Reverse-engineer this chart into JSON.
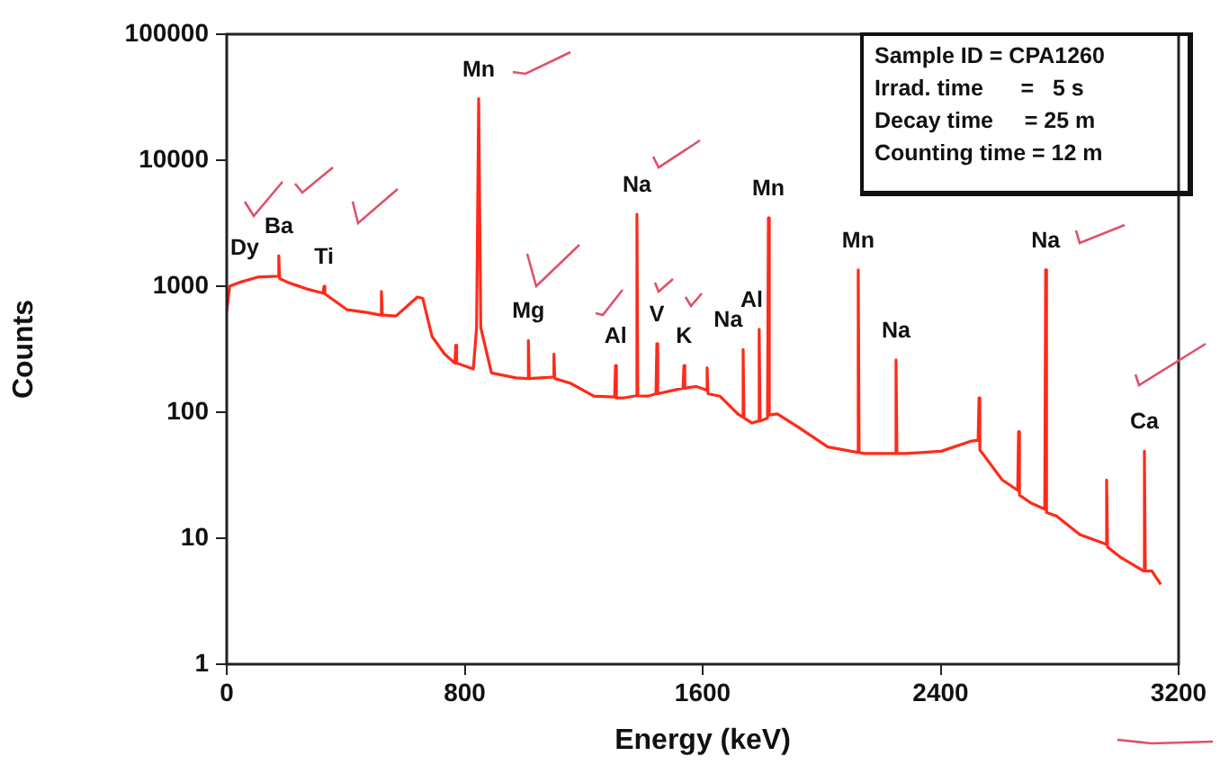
{
  "chart_data": {
    "type": "line",
    "xlabel": "Energy (keV)",
    "ylabel": "Counts",
    "log": "y",
    "marker": "none",
    "xlim": [
      0,
      3200
    ],
    "xticks": [
      0,
      800,
      1600,
      2400,
      3200
    ],
    "ylim": [
      1,
      100000
    ],
    "yticks": [
      1,
      10,
      100,
      1000,
      10000,
      100000
    ],
    "series": [
      {
        "color": "#ff2a1a",
        "x": [
          0,
          10,
          42,
          103,
          172,
          175,
          178,
          206,
          270,
          324,
          327,
          330,
          405,
          470,
          517,
          520,
          523,
          569,
          641,
          659,
          690,
          732,
          767,
          770,
          773,
          829,
          840,
          847,
          854,
          890,
          973,
          1011,
          1014,
          1017,
          1053,
          1097,
          1100,
          1103,
          1155,
          1234,
          1304,
          1307,
          1310,
          1337,
          1376,
          1379,
          1382,
          1416,
          1443,
          1446,
          1449,
          1494,
          1534,
          1537,
          1540,
          1579,
          1612,
          1615,
          1618,
          1658,
          1718,
          1733,
          1736,
          1739,
          1766,
          1787,
          1790,
          1793,
          1818,
          1821,
          1824,
          1851,
          1918,
          2021,
          2120,
          2123,
          2126,
          2142,
          2247,
          2250,
          2253,
          2281,
          2402,
          2504,
          2526,
          2529,
          2532,
          2547,
          2607,
          2659,
          2662,
          2665,
          2704,
          2750,
          2753,
          2756,
          2789,
          2868,
          2955,
          2958,
          2961,
          3007,
          3082,
          3085,
          3088,
          3110,
          3140
        ],
        "values": [
          630,
          1000,
          1070,
          1180,
          1200,
          1750,
          1150,
          1070,
          950,
          880,
          1000,
          870,
          650,
          620,
          590,
          910,
          590,
          580,
          820,
          800,
          400,
          290,
          245,
          340,
          245,
          220,
          470,
          30800,
          470,
          205,
          187,
          185,
          370,
          185,
          187,
          190,
          290,
          185,
          170,
          134,
          132,
          235,
          130,
          130,
          135,
          3720,
          135,
          134,
          140,
          350,
          140,
          148,
          155,
          235,
          155,
          160,
          150,
          225,
          140,
          134,
          97,
          92,
          315,
          90,
          82,
          85,
          455,
          85,
          90,
          3480,
          95,
          97,
          77,
          53,
          48,
          1350,
          48,
          47,
          47,
          260,
          47,
          47,
          49,
          59,
          60,
          130,
          50,
          45,
          29,
          24,
          70,
          22,
          19,
          17,
          1350,
          16,
          15,
          10.7,
          9,
          29,
          8.5,
          7,
          5.5,
          49,
          5.5,
          5.5,
          4.3
        ]
      }
    ],
    "annotations": [
      {
        "text": "Dy",
        "x": 103,
        "y": 1180
      },
      {
        "text": "Ba",
        "x": 175,
        "y": 1750
      },
      {
        "text": "Ti",
        "x": 327,
        "y": 1000
      },
      {
        "text": "Mn",
        "x": 847,
        "y": 30800
      },
      {
        "text": "Mg",
        "x": 1014,
        "y": 370
      },
      {
        "text": "Al",
        "x": 1307,
        "y": 235
      },
      {
        "text": "Na",
        "x": 1379,
        "y": 3720
      },
      {
        "text": "V",
        "x": 1446,
        "y": 350
      },
      {
        "text": "K",
        "x": 1537,
        "y": 235
      },
      {
        "text": "Na",
        "x": 1736,
        "y": 315
      },
      {
        "text": "Al",
        "x": 1790,
        "y": 455
      },
      {
        "text": "Mn",
        "x": 1821,
        "y": 3480
      },
      {
        "text": "Mn",
        "x": 2123,
        "y": 1350
      },
      {
        "text": "Na",
        "x": 2250,
        "y": 260
      },
      {
        "text": "Na",
        "x": 2753,
        "y": 1350
      },
      {
        "text": "Ca",
        "x": 3085,
        "y": 49
      },
      "Sample ID = CPA1260",
      "Irrad. time      =   5 s",
      "Decay time     = 25 m",
      "Counting time = 12 m"
    ]
  }
}
